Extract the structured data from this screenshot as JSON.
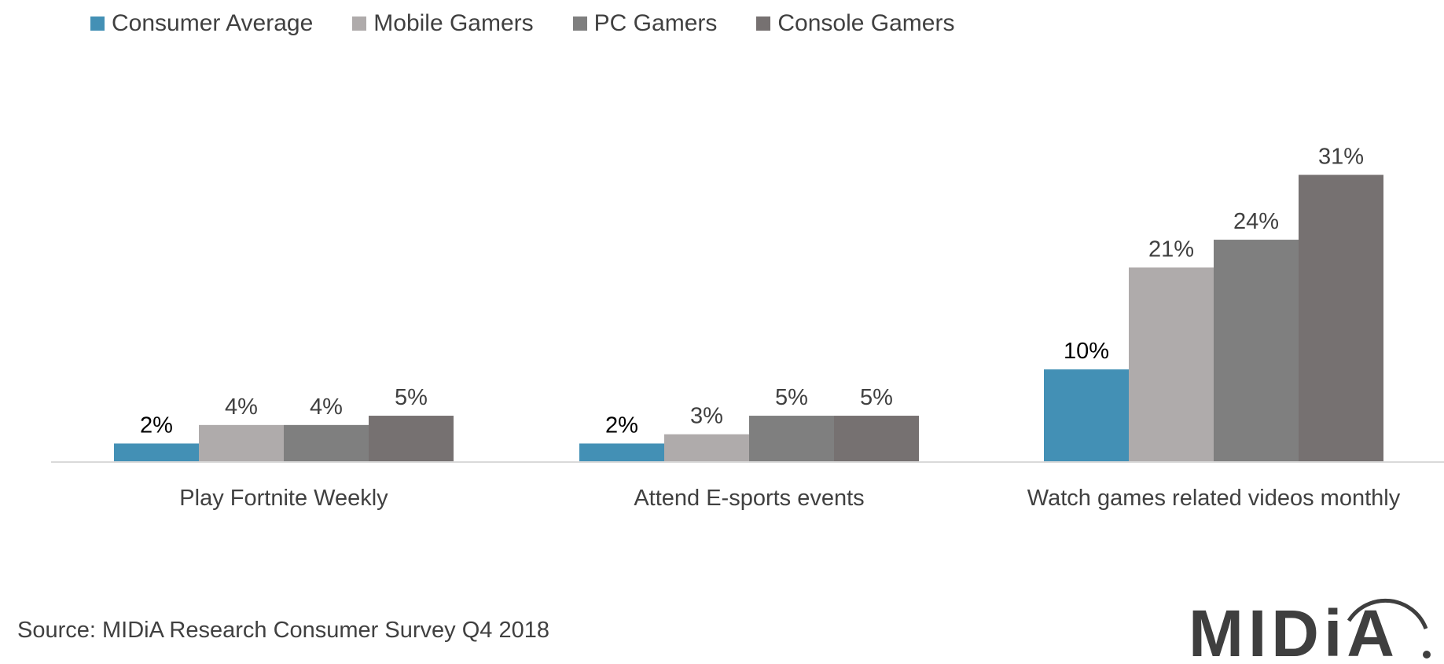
{
  "chart_data": {
    "type": "bar",
    "categories": [
      "Play Fortnite Weekly",
      "Attend E-sports events",
      "Watch games related videos monthly"
    ],
    "series": [
      {
        "name": "Consumer Average",
        "values": [
          2,
          2,
          10
        ],
        "labels": [
          "2%",
          "2%",
          "10%"
        ],
        "color": "#4390b5"
      },
      {
        "name": "Mobile Gamers",
        "values": [
          4,
          3,
          21
        ],
        "labels": [
          "4%",
          "3%",
          "21%"
        ],
        "color": "#afabab"
      },
      {
        "name": "PC Gamers",
        "values": [
          4,
          5,
          24
        ],
        "labels": [
          "4%",
          "5%",
          "24%"
        ],
        "color": "#7f7f7f"
      },
      {
        "name": "Console Gamers",
        "values": [
          5,
          5,
          31
        ],
        "labels": [
          "5%",
          "5%",
          "31%"
        ],
        "color": "#767171"
      }
    ],
    "ylim": [
      0,
      38
    ],
    "unit": "%",
    "grid": false,
    "legend_position": "top-left",
    "source": "Source: MIDiA Research Consumer Survey Q4 2018"
  },
  "logo": {
    "text": "MIDiA"
  },
  "colors": {
    "axis": "#d9d9d9",
    "label_text": "#404040",
    "highlight_label": "#000000",
    "logo": "#3f3f3f"
  }
}
